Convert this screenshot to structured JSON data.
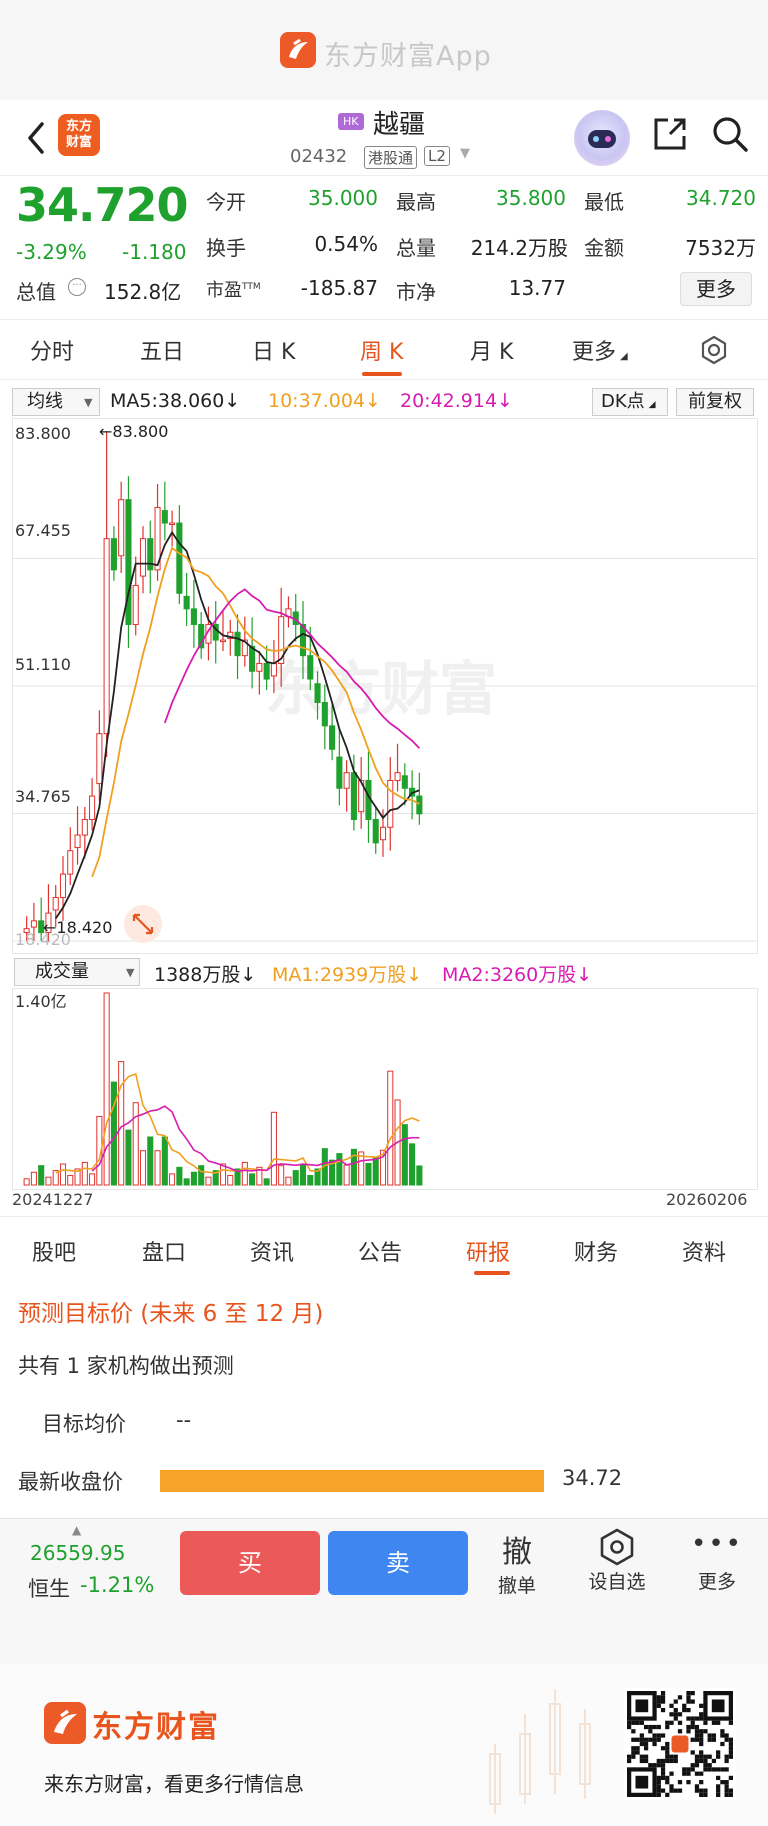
{
  "banner": {
    "app_name": "东方财富App"
  },
  "header": {
    "brand_icon_text": "东方\n财富",
    "market_badge": "HK",
    "stock_name": "越疆",
    "stock_code": "02432",
    "connect_badge": "港股通",
    "level_badge": "L2"
  },
  "quote": {
    "price": "34.720",
    "change_pct": "-3.29%",
    "change_abs": "-1.180",
    "market_cap_label": "总值",
    "market_cap_value": "152.8亿",
    "open_label": "今开",
    "open_value": "35.000",
    "high_label": "最高",
    "high_value": "35.800",
    "low_label": "最低",
    "low_value": "34.720",
    "turnover_label": "换手",
    "turnover_value": "0.54%",
    "volume_label": "总量",
    "volume_value": "214.2万股",
    "amount_label": "金额",
    "amount_value": "7532万",
    "pe_label": "市盈",
    "pe_sup": "TTM",
    "pe_value": "-185.87",
    "pb_label": "市净",
    "pb_value": "13.77",
    "more_label": "更多"
  },
  "period_tabs": [
    "分时",
    "五日",
    "日 K",
    "周 K",
    "月 K",
    "更多"
  ],
  "ma_legend": {
    "selector": "均线",
    "ma5": "MA5:38.060↓",
    "ma10": "10:37.004↓",
    "ma20": "20:42.914↓",
    "dk": "DK点",
    "adjust": "前复权"
  },
  "kline": {
    "y_labels": [
      "83.800",
      "67.455",
      "51.110",
      "34.765",
      "18.420"
    ],
    "max_marker": "←83.800",
    "min_marker": "←18.420",
    "watermark": "东方财富"
  },
  "volume": {
    "selector": "成交量",
    "current": "1388万股↓",
    "ma1": "MA1:2939万股↓",
    "ma2": "MA2:3260万股↓",
    "y_label": "1.40亿",
    "date_start": "20241227",
    "date_end": "20260206"
  },
  "chart_data": {
    "type": "candlestick",
    "y_axis_ticks": [
      83.8,
      67.455,
      51.11,
      34.765,
      18.42
    ],
    "ylim": [
      18.42,
      83.8
    ],
    "x_range": [
      "20241227",
      "20260206"
    ],
    "weekly_close_approx": [
      20,
      21,
      19.5,
      22,
      24,
      27,
      30,
      32,
      34,
      37,
      45,
      70,
      66,
      75,
      59,
      64,
      70,
      66,
      74,
      72,
      72,
      63,
      61,
      59,
      56,
      59,
      57,
      57,
      58,
      55,
      57,
      53,
      54,
      52,
      54,
      60,
      61,
      59,
      55,
      52,
      49,
      46,
      43,
      38,
      40,
      34,
      39,
      34,
      31,
      33,
      39,
      40,
      38,
      37,
      34.72
    ],
    "volume_ylim": [
      0,
      140000000
    ],
    "volume_last": 13880000,
    "volume_ma1": 29390000,
    "volume_ma2": 32600000
  },
  "info_tabs": [
    "股吧",
    "盘口",
    "资讯",
    "公告",
    "研报",
    "财务",
    "资料"
  ],
  "research": {
    "title": "预测目标价 (未来 6 至 12 月)",
    "count_text": "共有 1 家机构做出预测",
    "target_label": "目标均价",
    "target_value": "--",
    "close_label": "最新收盘价",
    "close_value": "34.72"
  },
  "trade_bar": {
    "index_value": "26559.95",
    "index_name": "恒生",
    "index_change": "-1.21%",
    "buy_label": "买",
    "sell_label": "卖",
    "cancel_glyph": "撤",
    "cancel_label": "撤单",
    "watch_label": "设自选",
    "more_label": "更多"
  },
  "footer": {
    "brand": "东方财富",
    "slogan": "来东方财富，看更多行情信息"
  },
  "colors": {
    "up": "#e0322c",
    "down": "#1fa12e",
    "accent": "#e8541e",
    "ma5": "#222222",
    "ma10": "#f0a020",
    "ma20": "#d81cb1"
  }
}
